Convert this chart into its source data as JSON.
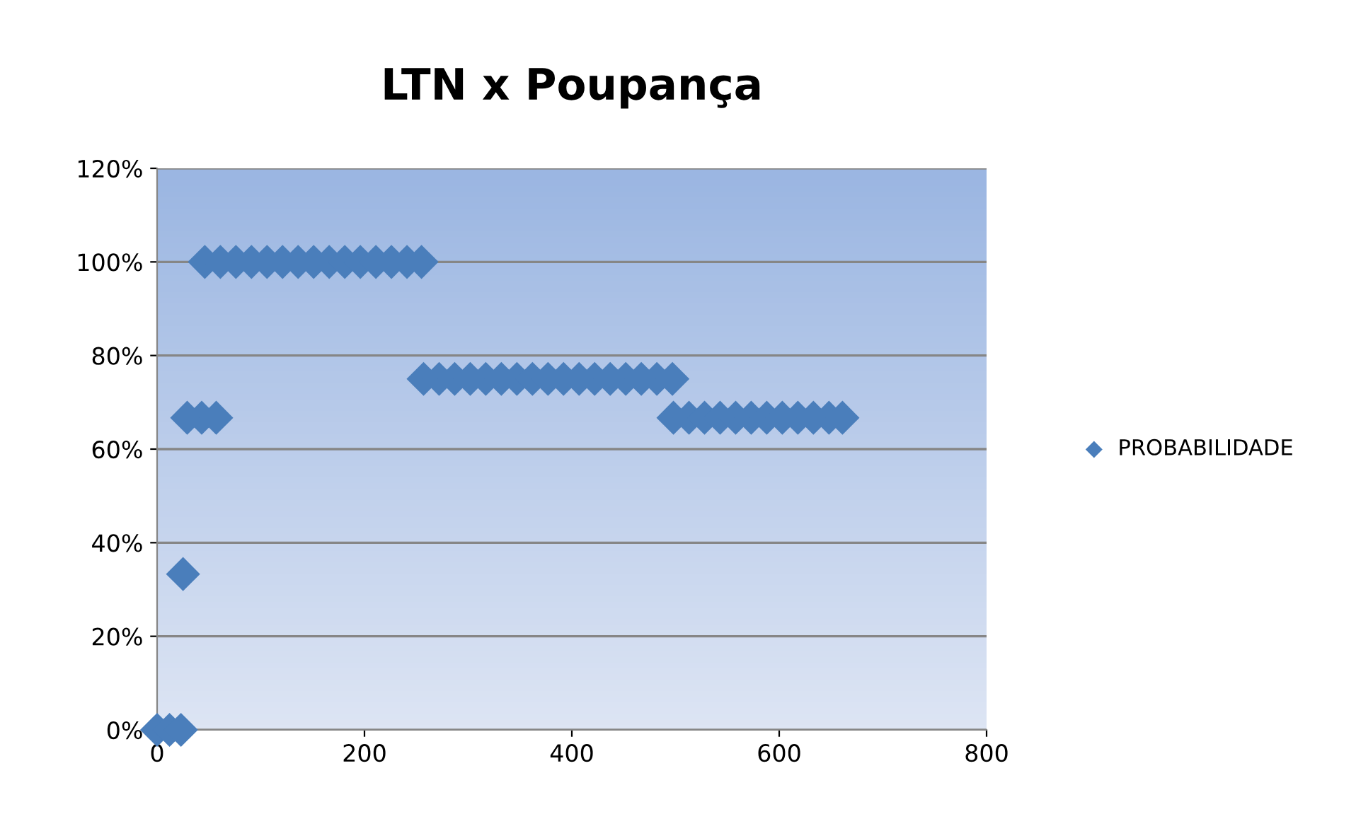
{
  "chart_data": {
    "type": "scatter",
    "title": "LTN x Poupança",
    "series": [
      {
        "name": "PROBABILIDADE",
        "color": "#4a7ebb",
        "x": [
          0,
          12,
          23,
          25,
          29,
          43,
          57,
          46,
          61,
          76,
          91,
          106,
          121,
          136,
          151,
          166,
          181,
          196,
          211,
          226,
          241,
          255,
          257,
          272,
          287,
          302,
          317,
          332,
          347,
          362,
          377,
          392,
          407,
          422,
          437,
          452,
          467,
          482,
          497,
          498,
          513,
          528,
          543,
          558,
          573,
          588,
          603,
          618,
          633,
          648,
          661
        ],
        "values": [
          0,
          0,
          0,
          0.333,
          0.667,
          0.667,
          0.667,
          1,
          1,
          1,
          1,
          1,
          1,
          1,
          1,
          1,
          1,
          1,
          1,
          1,
          1,
          1,
          0.75,
          0.75,
          0.75,
          0.75,
          0.75,
          0.75,
          0.75,
          0.75,
          0.75,
          0.75,
          0.75,
          0.75,
          0.75,
          0.75,
          0.75,
          0.75,
          0.75,
          0.667,
          0.667,
          0.667,
          0.667,
          0.667,
          0.667,
          0.667,
          0.667,
          0.667,
          0.667,
          0.667,
          0.667
        ]
      }
    ],
    "xlim": [
      0,
      800
    ],
    "xticks": [
      0,
      200,
      400,
      600,
      800
    ],
    "ylim": [
      0,
      1.2
    ],
    "yticks": [
      {
        "value": 0,
        "label": "0%"
      },
      {
        "value": 0.2,
        "label": "20%"
      },
      {
        "value": 0.4,
        "label": "40%"
      },
      {
        "value": 0.6,
        "label": "60%"
      },
      {
        "value": 0.8,
        "label": "80%"
      },
      {
        "value": 1,
        "label": "100%"
      },
      {
        "value": 1.2,
        "label": "120%"
      }
    ],
    "grid": "y",
    "legend": "right",
    "marker": "diamond"
  }
}
